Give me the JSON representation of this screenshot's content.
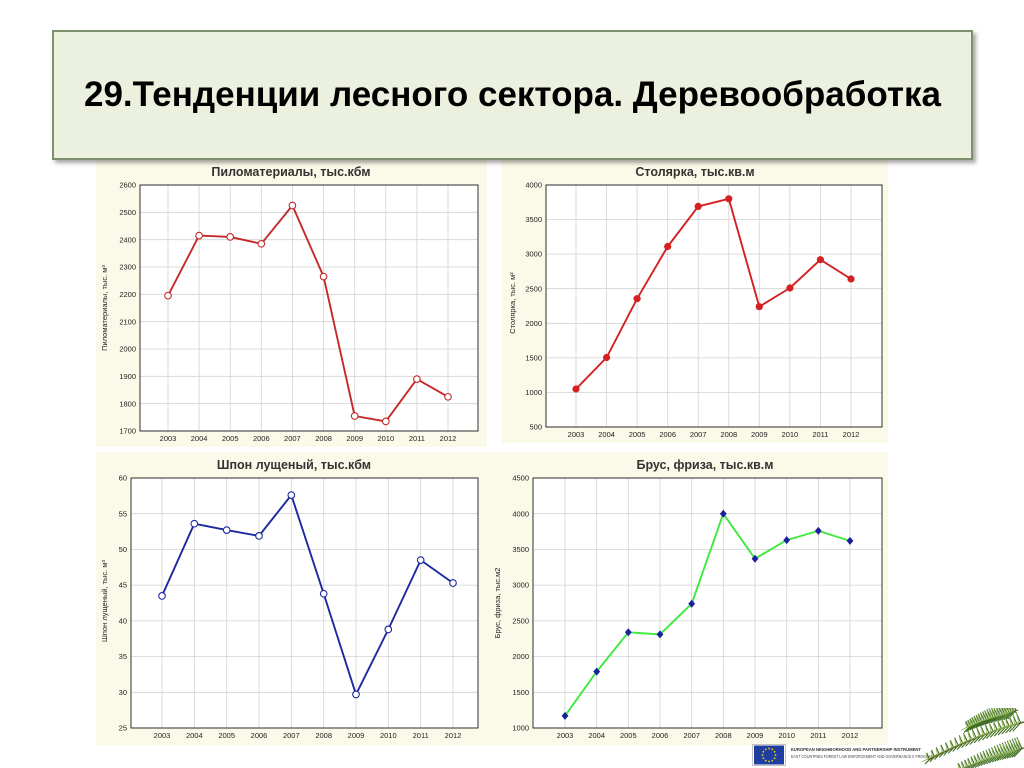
{
  "slide": {
    "title": "29.Тенденции лесного сектора. Деревообработка",
    "title_box_color": "#ebf1de",
    "title_border_color": "#7f9070",
    "panel_color": "#fbf9e8"
  },
  "footer": {
    "flag_icon": "eu-flag-icon",
    "program_line_1": "EUROPEAN NEIGHBORHOOD AND PARTNERSHIP INSTRUMENT",
    "program_line_2": "EAST COUNTRIES FOREST LAW ENFORCEMENT AND GOVERNANCE II PROGRAM",
    "decoration_icon": "pine-branch-icon"
  },
  "chart_data": [
    {
      "type": "line",
      "title": "Пиломатериалы, тыс.кбм",
      "ylabel": "Пиломатериалы, тыс. м³",
      "x": [
        "2003",
        "2004",
        "2005",
        "2006",
        "2007",
        "2008",
        "2009",
        "2010",
        "2011",
        "2012"
      ],
      "ylim": [
        1700,
        2600
      ],
      "yticks": [
        1700,
        1800,
        1900,
        2000,
        2100,
        2200,
        2300,
        2400,
        2500,
        2600
      ],
      "grid": true,
      "series": [
        {
          "values": [
            2195,
            2415,
            2410,
            2385,
            2525,
            2265,
            1755,
            1735,
            1890,
            1825
          ],
          "line_color": "#c42a2a",
          "marker": "open-circle",
          "marker_color": "#c42a2a"
        }
      ]
    },
    {
      "type": "line",
      "title": "Столярка, тыс.кв.м",
      "ylabel": "Столярка, тыс. м²",
      "x": [
        "2003",
        "2004",
        "2005",
        "2006",
        "2007",
        "2008",
        "2009",
        "2010",
        "2011",
        "2012"
      ],
      "ylim": [
        500,
        4000
      ],
      "yticks": [
        500,
        1000,
        1500,
        2000,
        2500,
        3000,
        3500,
        4000
      ],
      "grid": true,
      "series": [
        {
          "values": [
            1050,
            1505,
            2355,
            3110,
            3690,
            3800,
            2240,
            2510,
            2920,
            2640
          ],
          "line_color": "#d42020",
          "marker": "filled-circle",
          "marker_color": "#d42020"
        }
      ]
    },
    {
      "type": "line",
      "title": "Шпон лущеный, тыс.кбм",
      "ylabel": "Шпон лущеный, тыс. м³",
      "x": [
        "2003",
        "2004",
        "2005",
        "2006",
        "2007",
        "2008",
        "2009",
        "2010",
        "2011",
        "2012"
      ],
      "ylim": [
        25,
        60
      ],
      "yticks": [
        25,
        30,
        35,
        40,
        45,
        50,
        55,
        60
      ],
      "grid": true,
      "series": [
        {
          "values": [
            43.5,
            53.6,
            52.7,
            51.9,
            57.6,
            43.8,
            29.7,
            38.8,
            48.5,
            45.3
          ],
          "line_color": "#1c2a9e",
          "marker": "open-circle",
          "marker_color": "#1c2a9e"
        }
      ]
    },
    {
      "type": "line",
      "title": "Брус, фриза, тыс.кв.м",
      "ylabel": "Брус, фриза, тыс.м2",
      "x": [
        "2003",
        "2004",
        "2005",
        "2006",
        "2007",
        "2008",
        "2009",
        "2010",
        "2011",
        "2012"
      ],
      "ylim": [
        1000,
        4500
      ],
      "yticks": [
        1000,
        1500,
        2000,
        2500,
        3000,
        3500,
        4000,
        4500
      ],
      "grid": true,
      "series": [
        {
          "values": [
            1170,
            1790,
            2340,
            2310,
            2740,
            4000,
            3370,
            3630,
            3760,
            3620
          ],
          "line_color": "#3ee83e",
          "marker": "filled-diamond",
          "marker_color": "#1a1f9e"
        }
      ]
    }
  ]
}
